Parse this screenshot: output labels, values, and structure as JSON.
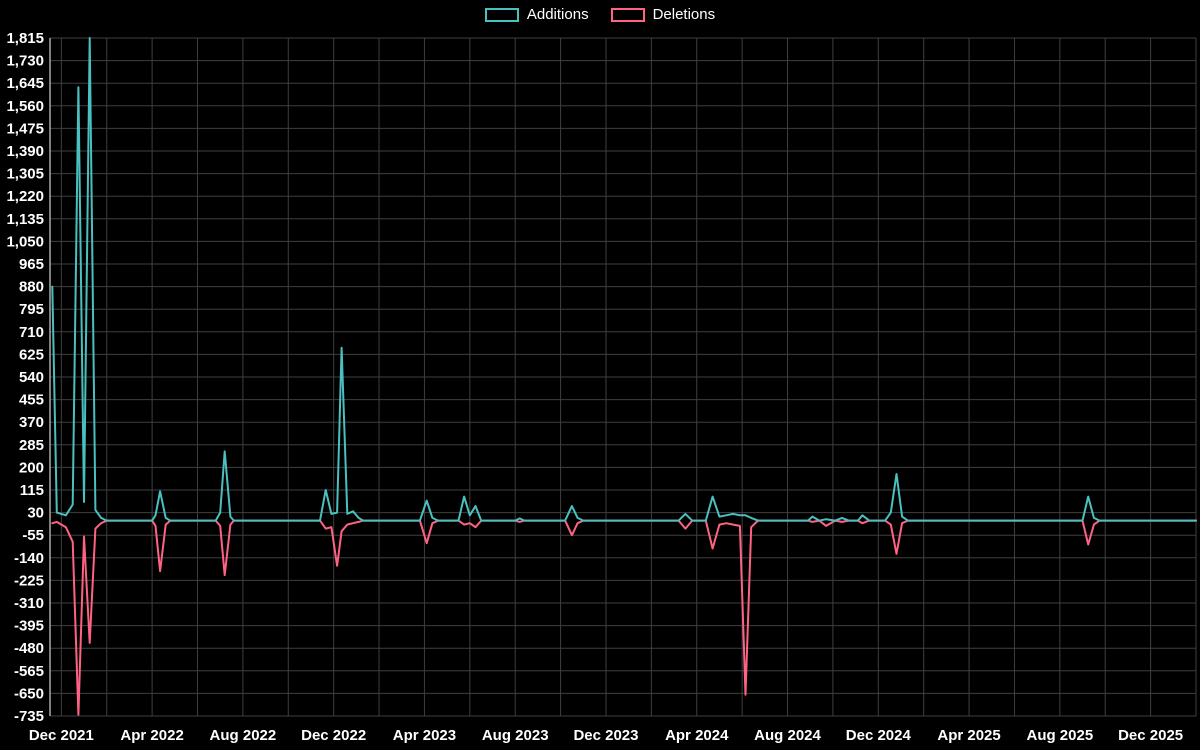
{
  "page": {
    "background": "#000000",
    "text_color": "#ffffff"
  },
  "legend": [
    {
      "label": "Additions",
      "color": "#4bc0c0"
    },
    {
      "label": "Deletions",
      "color": "#ff6384"
    }
  ],
  "chart_data": {
    "type": "line",
    "description": "Weekly code additions and deletions over time; flat segments are 0",
    "legend_position": "top-center",
    "grid": true,
    "grid_color": "#3f3f3f",
    "axis_color": "#aaaaaa",
    "ylim": [
      -735,
      1815
    ],
    "y_tick_step": 85,
    "x_domain": [
      -0.5,
      50.0
    ],
    "grid_x_step_months": 2,
    "x_tick_positions": [
      0,
      4,
      8,
      12,
      16,
      20,
      24,
      28,
      32,
      36,
      40,
      44,
      48
    ],
    "x_tick_labels": [
      "Dec 2021",
      "Apr 2022",
      "Aug 2022",
      "Dec 2022",
      "Apr 2023",
      "Aug 2023",
      "Dec 2023",
      "Apr 2024",
      "Aug 2024",
      "Dec 2024",
      "Apr 2025",
      "Aug 2025",
      "Dec 2025"
    ],
    "x_months": [
      -0.4,
      -0.2,
      0.2,
      0.5,
      0.75,
      1.0,
      1.25,
      1.5,
      1.75,
      2.0,
      4.0,
      4.15,
      4.35,
      4.6,
      4.8,
      6.8,
      7.0,
      7.2,
      7.45,
      7.6,
      11.4,
      11.65,
      11.9,
      12.15,
      12.35,
      12.6,
      12.85,
      13.1,
      13.3,
      15.8,
      16.1,
      16.35,
      16.6,
      17.5,
      17.75,
      18.0,
      18.25,
      18.5,
      20.0,
      20.2,
      20.4,
      22.2,
      22.5,
      22.75,
      23.0,
      27.2,
      27.5,
      27.8,
      28.4,
      28.7,
      29.0,
      29.3,
      29.6,
      29.9,
      30.15,
      30.4,
      30.7,
      32.9,
      33.1,
      33.4,
      33.7,
      34.1,
      34.4,
      34.7,
      35.1,
      35.3,
      35.6,
      36.3,
      36.55,
      36.8,
      37.05,
      37.3,
      45.0,
      45.25,
      45.5,
      45.75,
      50.0
    ],
    "series": [
      {
        "name": "Additions",
        "color": "#4bc0c0",
        "values": [
          880,
          30,
          20,
          60,
          1630,
          70,
          1815,
          40,
          10,
          0,
          0,
          20,
          110,
          10,
          0,
          0,
          30,
          260,
          15,
          0,
          0,
          115,
          25,
          30,
          650,
          25,
          35,
          10,
          0,
          0,
          75,
          10,
          0,
          0,
          90,
          20,
          55,
          0,
          0,
          8,
          0,
          0,
          55,
          10,
          0,
          0,
          25,
          0,
          0,
          90,
          15,
          20,
          25,
          20,
          20,
          10,
          0,
          0,
          15,
          0,
          5,
          0,
          10,
          0,
          0,
          20,
          0,
          0,
          30,
          175,
          15,
          0,
          0,
          90,
          10,
          0,
          0
        ]
      },
      {
        "name": "Deletions",
        "color": "#ff6384",
        "values": [
          -10,
          -5,
          -25,
          -80,
          -730,
          -60,
          -460,
          -30,
          -10,
          0,
          0,
          -20,
          -190,
          -15,
          0,
          0,
          -20,
          -205,
          -15,
          0,
          0,
          -30,
          -25,
          -170,
          -40,
          -15,
          -10,
          -5,
          0,
          0,
          -85,
          -10,
          0,
          0,
          -15,
          -10,
          -25,
          0,
          0,
          -5,
          0,
          0,
          -55,
          -10,
          0,
          0,
          -30,
          0,
          0,
          -105,
          -15,
          -10,
          -15,
          -20,
          -655,
          -25,
          0,
          0,
          -5,
          0,
          -20,
          0,
          -5,
          0,
          0,
          -10,
          0,
          0,
          -15,
          -125,
          -10,
          0,
          0,
          -90,
          -15,
          0,
          0
        ]
      }
    ]
  }
}
